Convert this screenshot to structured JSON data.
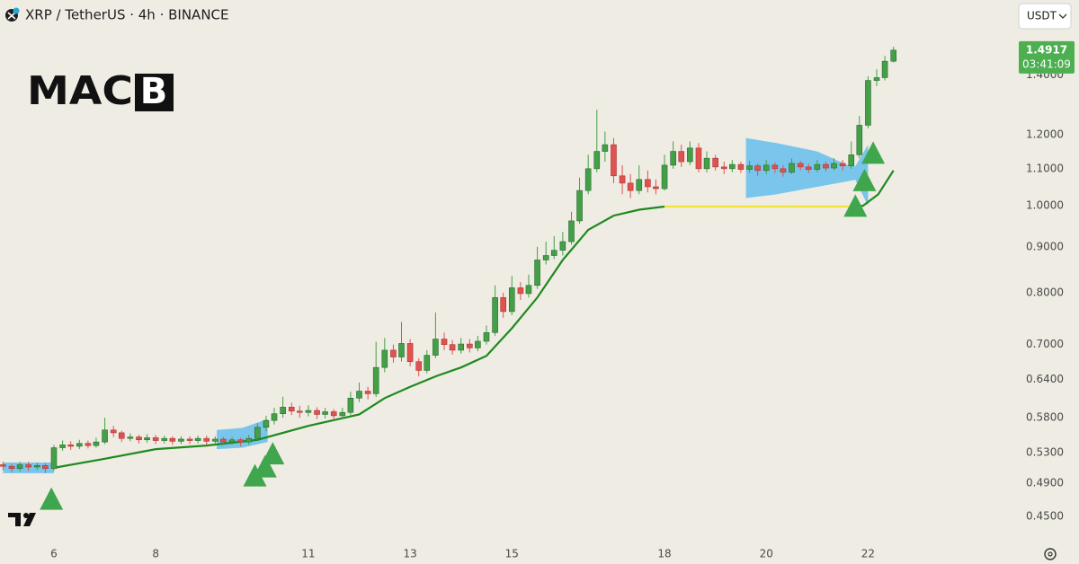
{
  "chart_data": {
    "type": "candlestick",
    "title": "XRP / TetherUS · 4h · BINANCE",
    "currency": "USDT",
    "logo_text": "MAC",
    "logo_box": "B",
    "last_price": 1.4917,
    "countdown": "03:41:09",
    "log_scale": true,
    "grid": false,
    "up_color": "#43a047",
    "down_color": "#e0524f",
    "xlim": [
      4.94,
      24.82
    ],
    "ylim": [
      0.42,
      1.697
    ],
    "xticks": [
      6,
      8,
      11,
      13,
      15,
      18,
      20,
      22
    ],
    "yticks": [
      {
        "value": 1.4,
        "label": "1.4000"
      },
      {
        "value": 1.2,
        "label": "1.2000"
      },
      {
        "value": 1.1,
        "label": "1.1000"
      },
      {
        "value": 1.0,
        "label": "1.0000"
      },
      {
        "value": 0.9,
        "label": "0.9000"
      },
      {
        "value": 0.8,
        "label": "0.8000"
      },
      {
        "value": 0.7,
        "label": "0.7000"
      },
      {
        "value": 0.64,
        "label": "0.6400"
      },
      {
        "value": 0.58,
        "label": "0.5800"
      },
      {
        "value": 0.53,
        "label": "0.5300"
      },
      {
        "value": 0.49,
        "label": "0.4900"
      },
      {
        "value": 0.45,
        "label": "0.4500"
      }
    ],
    "x": [
      5,
      5.17,
      5.33,
      5.5,
      5.67,
      5.83,
      6,
      6.17,
      6.33,
      6.5,
      6.67,
      6.83,
      7,
      7.17,
      7.33,
      7.5,
      7.67,
      7.83,
      8,
      8.17,
      8.33,
      8.5,
      8.67,
      8.83,
      9,
      9.17,
      9.33,
      9.5,
      9.67,
      9.83,
      10,
      10.17,
      10.33,
      10.5,
      10.67,
      10.83,
      11,
      11.17,
      11.33,
      11.5,
      11.67,
      11.83,
      12,
      12.17,
      12.33,
      12.5,
      12.67,
      12.83,
      13,
      13.17,
      13.33,
      13.5,
      13.67,
      13.83,
      14,
      14.17,
      14.33,
      14.5,
      14.67,
      14.83,
      15,
      15.17,
      15.33,
      15.5,
      15.67,
      15.83,
      16,
      16.17,
      16.33,
      16.5,
      16.67,
      16.83,
      17,
      17.17,
      17.33,
      17.5,
      17.67,
      17.83,
      18,
      18.17,
      18.33,
      18.5,
      18.67,
      18.83,
      19,
      19.17,
      19.33,
      19.5,
      19.67,
      19.83,
      20,
      20.17,
      20.33,
      20.5,
      20.67,
      20.83,
      21,
      21.17,
      21.33,
      21.5,
      21.67,
      21.83,
      22,
      22.17,
      22.33,
      22.5
    ],
    "open": [
      0.514,
      0.512,
      0.509,
      0.514,
      0.511,
      0.513,
      0.509,
      0.537,
      0.541,
      0.539,
      0.543,
      0.54,
      0.545,
      0.562,
      0.558,
      0.55,
      0.552,
      0.548,
      0.551,
      0.547,
      0.55,
      0.546,
      0.549,
      0.547,
      0.55,
      0.546,
      0.549,
      0.545,
      0.548,
      0.545,
      0.55,
      0.566,
      0.576,
      0.586,
      0.596,
      0.59,
      0.588,
      0.591,
      0.585,
      0.589,
      0.583,
      0.588,
      0.61,
      0.621,
      0.617,
      0.66,
      0.69,
      0.678,
      0.702,
      0.67,
      0.655,
      0.681,
      0.71,
      0.7,
      0.69,
      0.701,
      0.694,
      0.706,
      0.722,
      0.79,
      0.762,
      0.81,
      0.798,
      0.815,
      0.87,
      0.88,
      0.892,
      0.912,
      0.962,
      1.04,
      1.1,
      1.15,
      1.17,
      1.08,
      1.06,
      1.04,
      1.07,
      1.05,
      1.045,
      1.11,
      1.15,
      1.12,
      1.16,
      1.1,
      1.13,
      1.105,
      1.1,
      1.112,
      1.098,
      1.108,
      1.095,
      1.11,
      1.1,
      1.09,
      1.115,
      1.105,
      1.098,
      1.112,
      1.102,
      1.115,
      1.108,
      1.14,
      1.23,
      1.38,
      1.39,
      1.45
    ],
    "high": [
      0.518,
      0.515,
      0.518,
      0.518,
      0.517,
      0.516,
      0.541,
      0.547,
      0.546,
      0.548,
      0.547,
      0.551,
      0.58,
      0.568,
      0.561,
      0.557,
      0.555,
      0.556,
      0.555,
      0.554,
      0.553,
      0.553,
      0.553,
      0.554,
      0.554,
      0.553,
      0.552,
      0.552,
      0.551,
      0.555,
      0.572,
      0.583,
      0.595,
      0.612,
      0.603,
      0.598,
      0.599,
      0.596,
      0.595,
      0.593,
      0.595,
      0.62,
      0.635,
      0.628,
      0.705,
      0.712,
      0.7,
      0.742,
      0.71,
      0.676,
      0.69,
      0.76,
      0.722,
      0.708,
      0.712,
      0.71,
      0.716,
      0.735,
      0.815,
      0.8,
      0.835,
      0.822,
      0.838,
      0.9,
      0.912,
      0.925,
      0.935,
      0.985,
      1.075,
      1.14,
      1.28,
      1.21,
      1.19,
      1.11,
      1.085,
      1.11,
      1.095,
      1.07,
      1.14,
      1.18,
      1.17,
      1.18,
      1.175,
      1.15,
      1.14,
      1.12,
      1.125,
      1.12,
      1.122,
      1.115,
      1.125,
      1.118,
      1.11,
      1.13,
      1.122,
      1.115,
      1.125,
      1.12,
      1.13,
      1.125,
      1.18,
      1.26,
      1.395,
      1.42,
      1.47,
      1.505
    ],
    "low": [
      0.507,
      0.504,
      0.505,
      0.506,
      0.507,
      0.503,
      0.506,
      0.533,
      0.534,
      0.535,
      0.536,
      0.537,
      0.542,
      0.552,
      0.545,
      0.546,
      0.543,
      0.544,
      0.542,
      0.543,
      0.541,
      0.542,
      0.542,
      0.543,
      0.541,
      0.542,
      0.54,
      0.541,
      0.539,
      0.541,
      0.547,
      0.56,
      0.57,
      0.58,
      0.584,
      0.58,
      0.582,
      0.578,
      0.579,
      0.576,
      0.578,
      0.584,
      0.604,
      0.608,
      0.612,
      0.652,
      0.668,
      0.67,
      0.662,
      0.645,
      0.65,
      0.676,
      0.69,
      0.682,
      0.684,
      0.686,
      0.688,
      0.7,
      0.716,
      0.75,
      0.755,
      0.785,
      0.79,
      0.808,
      0.86,
      0.872,
      0.88,
      0.905,
      0.955,
      1.03,
      1.09,
      1.12,
      1.06,
      1.03,
      1.02,
      1.03,
      1.035,
      1.03,
      1.04,
      1.1,
      1.105,
      1.11,
      1.09,
      1.09,
      1.095,
      1.085,
      1.09,
      1.088,
      1.088,
      1.08,
      1.085,
      1.088,
      1.078,
      1.085,
      1.095,
      1.088,
      1.09,
      1.092,
      1.095,
      1.095,
      1.1,
      1.13,
      1.22,
      1.36,
      1.38,
      1.445
    ],
    "close": [
      0.512,
      0.509,
      0.514,
      0.511,
      0.513,
      0.509,
      0.537,
      0.541,
      0.539,
      0.543,
      0.54,
      0.545,
      0.562,
      0.558,
      0.55,
      0.552,
      0.548,
      0.551,
      0.547,
      0.55,
      0.546,
      0.549,
      0.547,
      0.55,
      0.546,
      0.549,
      0.545,
      0.548,
      0.545,
      0.55,
      0.566,
      0.576,
      0.586,
      0.596,
      0.59,
      0.588,
      0.591,
      0.585,
      0.589,
      0.583,
      0.588,
      0.61,
      0.621,
      0.617,
      0.66,
      0.69,
      0.678,
      0.702,
      0.67,
      0.655,
      0.681,
      0.71,
      0.7,
      0.69,
      0.701,
      0.694,
      0.706,
      0.722,
      0.79,
      0.762,
      0.81,
      0.798,
      0.815,
      0.87,
      0.88,
      0.892,
      0.912,
      0.962,
      1.04,
      1.1,
      1.15,
      1.17,
      1.08,
      1.06,
      1.04,
      1.07,
      1.05,
      1.045,
      1.11,
      1.15,
      1.12,
      1.16,
      1.1,
      1.13,
      1.105,
      1.1,
      1.112,
      1.098,
      1.108,
      1.095,
      1.11,
      1.1,
      1.09,
      1.115,
      1.105,
      1.098,
      1.112,
      1.102,
      1.115,
      1.108,
      1.14,
      1.23,
      1.38,
      1.39,
      1.45,
      1.4917
    ],
    "zones": [
      {
        "color": "#5bbcec",
        "x": [
          5,
          6
        ],
        "upper": [
          0.517,
          0.517
        ],
        "lower": [
          0.503,
          0.503
        ]
      },
      {
        "color": "#5bbcec",
        "x": [
          9.2,
          9.7,
          10.2
        ],
        "upper": [
          0.562,
          0.565,
          0.578
        ],
        "lower": [
          0.535,
          0.537,
          0.545
        ]
      },
      {
        "color": "#5bbcec",
        "x": [
          19.6,
          20.2,
          21.0,
          21.6,
          21.75,
          22.0
        ],
        "upper": [
          1.19,
          1.175,
          1.15,
          1.11,
          1.107,
          1.17
        ],
        "lower": [
          1.02,
          1.03,
          1.05,
          1.065,
          1.069,
          1.0
        ]
      }
    ],
    "lines": [
      {
        "color": "#1e8a1e",
        "x": [
          6,
          7,
          8,
          9,
          10,
          11,
          12,
          12.5,
          13,
          13.5,
          14,
          14.5,
          15,
          15.5,
          16,
          16.5,
          17,
          17.5,
          18
        ],
        "values": [
          0.51,
          0.522,
          0.535,
          0.54,
          0.548,
          0.568,
          0.585,
          0.61,
          0.628,
          0.645,
          0.66,
          0.68,
          0.73,
          0.79,
          0.87,
          0.94,
          0.975,
          0.99,
          0.998
        ]
      },
      {
        "color": "#f2e23c",
        "x": [
          18,
          21.75
        ],
        "values": [
          0.998,
          0.998
        ]
      },
      {
        "color": "#1e8a1e",
        "x": [
          21.75,
          21.9,
          22.2,
          22.5
        ],
        "values": [
          0.998,
          1.0,
          1.03,
          1.095
        ]
      }
    ],
    "signals": {
      "color": "#3fa64e",
      "x": [
        5.95,
        9.95,
        10.15,
        10.3,
        21.75,
        21.93,
        22.1
      ],
      "values": [
        0.485,
        0.515,
        0.527,
        0.545,
        1.03,
        1.1,
        1.18
      ]
    }
  }
}
